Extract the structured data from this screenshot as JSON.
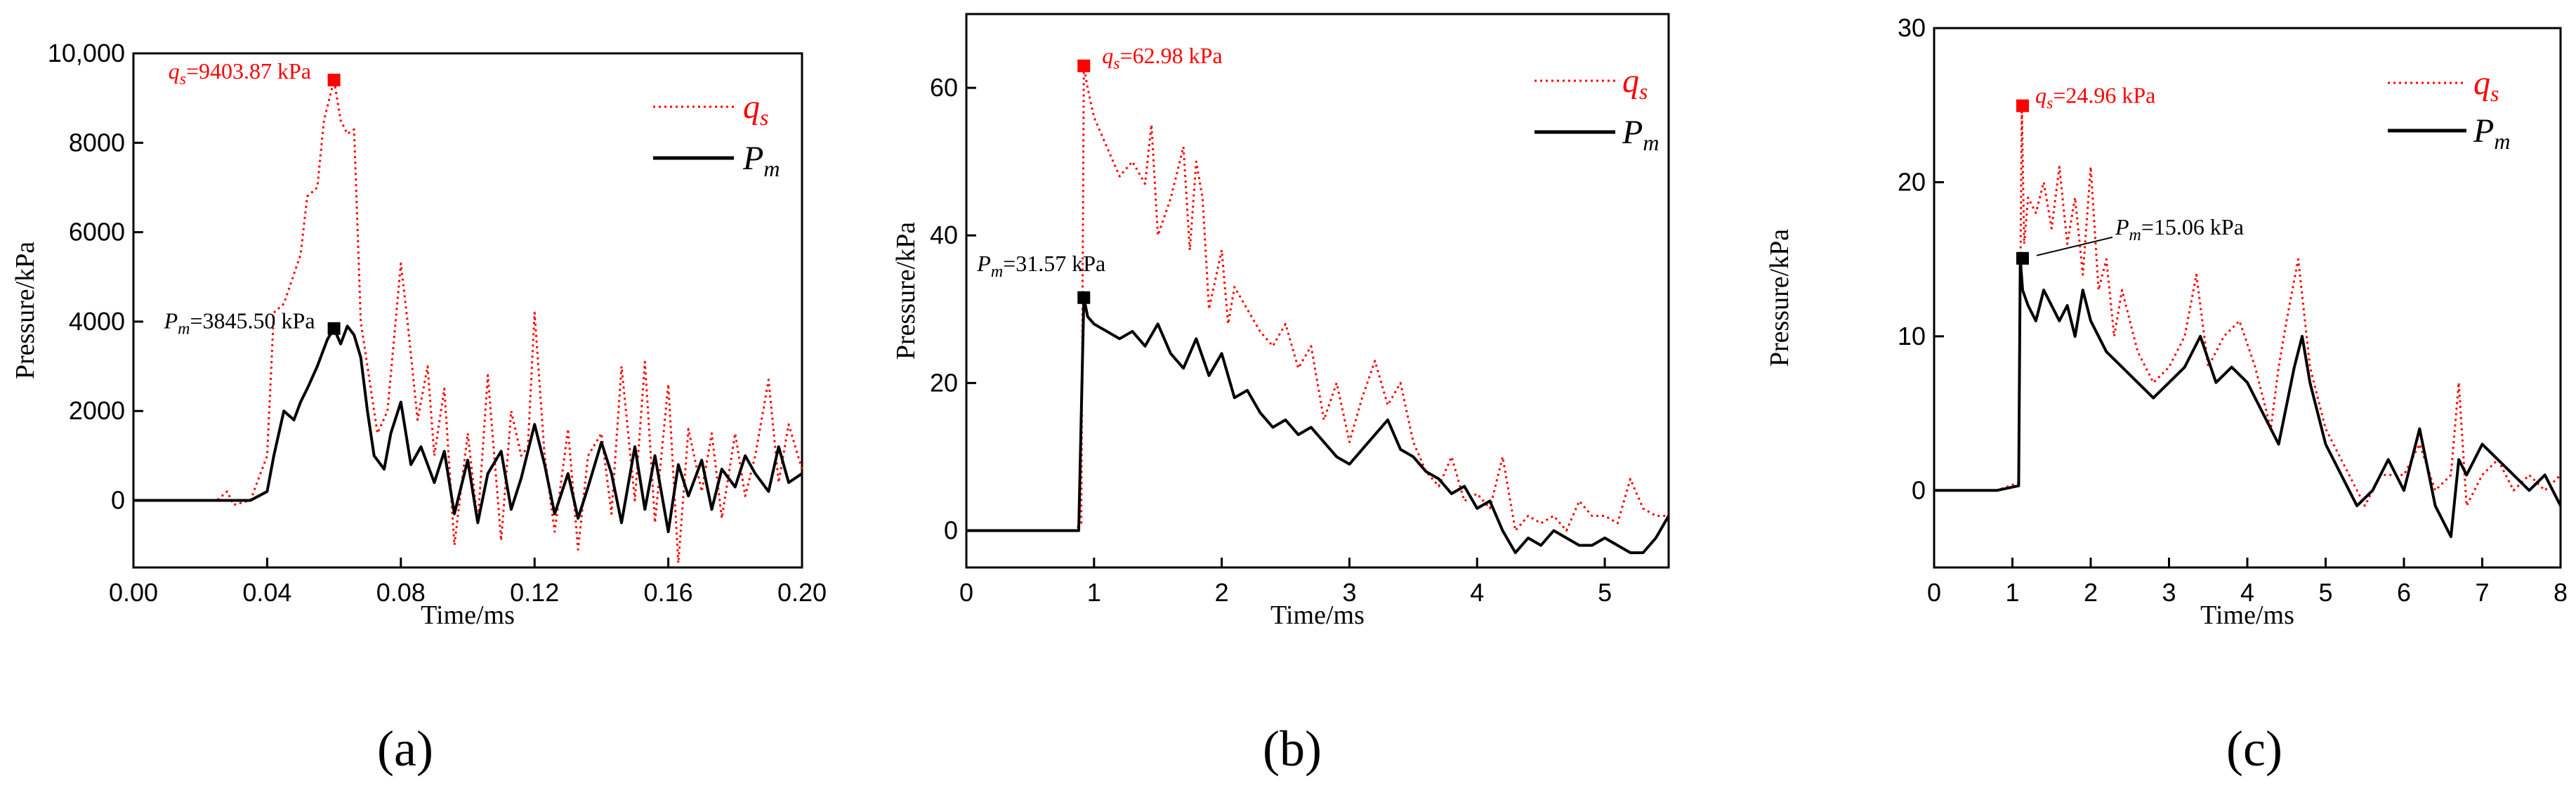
{
  "chart_data": [
    {
      "type": "line",
      "panel_label": "(a)",
      "xlabel": "Time/ms",
      "ylabel": "Pressure/kPa",
      "xlim": [
        0,
        0.2
      ],
      "ylim": [
        -1500,
        10000
      ],
      "xticks": [
        0,
        0.04,
        0.08,
        0.12,
        0.16,
        0.2
      ],
      "xtick_labels": [
        "0.00",
        "0.04",
        "0.08",
        "0.12",
        "0.16",
        "0.20"
      ],
      "yticks": [
        0,
        2000,
        4000,
        6000,
        8000,
        10000
      ],
      "ytick_labels": [
        "0",
        "2000",
        "4000",
        "6000",
        "8000",
        "10,000"
      ],
      "legend_position": "top-right",
      "series": [
        {
          "name": "q_s",
          "legend_main": "q",
          "legend_sub": "s",
          "color": "#ff0000",
          "style": "dotted",
          "x": [
            0,
            0.025,
            0.028,
            0.03,
            0.035,
            0.04,
            0.042,
            0.045,
            0.05,
            0.052,
            0.055,
            0.057,
            0.06,
            0.062,
            0.064,
            0.066,
            0.068,
            0.07,
            0.073,
            0.076,
            0.08,
            0.082,
            0.085,
            0.088,
            0.09,
            0.093,
            0.096,
            0.1,
            0.103,
            0.106,
            0.11,
            0.113,
            0.116,
            0.118,
            0.12,
            0.123,
            0.126,
            0.13,
            0.133,
            0.136,
            0.14,
            0.143,
            0.146,
            0.15,
            0.153,
            0.156,
            0.16,
            0.163,
            0.166,
            0.17,
            0.173,
            0.176,
            0.18,
            0.183,
            0.186,
            0.19,
            0.193,
            0.196,
            0.2
          ],
          "y": [
            0,
            0,
            200,
            -100,
            0,
            1000,
            4200,
            4400,
            5500,
            6800,
            7000,
            8500,
            9403.87,
            8500,
            8200,
            8300,
            4000,
            3000,
            1500,
            2000,
            5300,
            4000,
            1800,
            3000,
            1000,
            2500,
            -1000,
            1500,
            -500,
            2800,
            -900,
            2000,
            1000,
            1200,
            4200,
            1000,
            -700,
            1600,
            -1100,
            1000,
            1500,
            -300,
            3000,
            0,
            3100,
            -500,
            2600,
            -1400,
            1600,
            200,
            1500,
            -400,
            1500,
            100,
            1000,
            2700,
            400,
            1700,
            700
          ]
        },
        {
          "name": "P_m",
          "legend_main": "P",
          "legend_sub": "m",
          "color": "#000000",
          "style": "solid",
          "x": [
            0,
            0.035,
            0.04,
            0.042,
            0.045,
            0.048,
            0.05,
            0.052,
            0.055,
            0.058,
            0.06,
            0.062,
            0.064,
            0.066,
            0.068,
            0.07,
            0.072,
            0.075,
            0.077,
            0.08,
            0.083,
            0.086,
            0.09,
            0.093,
            0.096,
            0.1,
            0.103,
            0.106,
            0.11,
            0.113,
            0.116,
            0.12,
            0.123,
            0.126,
            0.13,
            0.133,
            0.136,
            0.14,
            0.143,
            0.146,
            0.15,
            0.153,
            0.156,
            0.16,
            0.163,
            0.166,
            0.17,
            0.173,
            0.176,
            0.18,
            0.183,
            0.186,
            0.19,
            0.193,
            0.196,
            0.2
          ],
          "y": [
            0,
            0,
            200,
            1000,
            2000,
            1800,
            2200,
            2500,
            3000,
            3600,
            3845.5,
            3500,
            3900,
            3700,
            3200,
            2000,
            1000,
            700,
            1500,
            2200,
            800,
            1200,
            400,
            1100,
            -300,
            900,
            -500,
            600,
            1100,
            -200,
            500,
            1700,
            800,
            -300,
            600,
            -400,
            300,
            1300,
            600,
            -500,
            1200,
            -200,
            1000,
            -700,
            800,
            100,
            900,
            -200,
            700,
            300,
            1000,
            600,
            200,
            1200,
            400,
            600
          ]
        }
      ],
      "annotations": [
        {
          "series": "q_s",
          "x": 0.06,
          "y": 9403.87,
          "main": "q",
          "sub": "s",
          "value_text": "=9403.87 kPa"
        },
        {
          "series": "P_m",
          "x": 0.06,
          "y": 3845.5,
          "main": "P",
          "sub": "m",
          "value_text": "=3845.50 kPa"
        }
      ]
    },
    {
      "type": "line",
      "panel_label": "(b)",
      "xlabel": "Time/ms",
      "ylabel": "Pressure/kPa",
      "xlim": [
        0,
        5.5
      ],
      "ylim": [
        -5,
        70
      ],
      "xticks": [
        0,
        1,
        2,
        3,
        4,
        5
      ],
      "xtick_labels": [
        "0",
        "1",
        "2",
        "3",
        "4",
        "5"
      ],
      "yticks": [
        0,
        20,
        40,
        60
      ],
      "ytick_labels": [
        "0",
        "20",
        "40",
        "60"
      ],
      "legend_position": "top-right",
      "series": [
        {
          "name": "q_s",
          "legend_main": "q",
          "legend_sub": "s",
          "color": "#ff0000",
          "style": "dotted",
          "x": [
            0,
            0.5,
            0.85,
            0.9,
            0.92,
            0.95,
            1.0,
            1.1,
            1.2,
            1.3,
            1.4,
            1.45,
            1.5,
            1.6,
            1.7,
            1.75,
            1.8,
            1.85,
            1.9,
            2.0,
            2.05,
            2.1,
            2.2,
            2.3,
            2.4,
            2.5,
            2.6,
            2.7,
            2.8,
            2.9,
            3.0,
            3.1,
            3.2,
            3.3,
            3.4,
            3.5,
            3.6,
            3.7,
            3.8,
            3.9,
            4.0,
            4.1,
            4.2,
            4.3,
            4.4,
            4.5,
            4.6,
            4.7,
            4.8,
            4.9,
            5.0,
            5.1,
            5.2,
            5.3,
            5.4,
            5.5
          ],
          "y": [
            0,
            0,
            0,
            1,
            62.98,
            60,
            56,
            52,
            48,
            50,
            47,
            55,
            40,
            45,
            52,
            38,
            50,
            45,
            30,
            38,
            28,
            33,
            30,
            27,
            25,
            28,
            22,
            25,
            15,
            20,
            12,
            18,
            23,
            17,
            20,
            12,
            8,
            6,
            10,
            4,
            5,
            3,
            10,
            0,
            2,
            1,
            2,
            0,
            4,
            2,
            2,
            1,
            7,
            3,
            2,
            2
          ]
        },
        {
          "name": "P_m",
          "legend_main": "P",
          "legend_sub": "m",
          "color": "#000000",
          "style": "solid",
          "x": [
            0,
            0.5,
            0.88,
            0.92,
            0.95,
            1.0,
            1.1,
            1.2,
            1.3,
            1.4,
            1.5,
            1.6,
            1.7,
            1.8,
            1.9,
            2.0,
            2.1,
            2.2,
            2.3,
            2.4,
            2.5,
            2.6,
            2.7,
            2.8,
            2.9,
            3.0,
            3.1,
            3.2,
            3.3,
            3.4,
            3.5,
            3.6,
            3.7,
            3.8,
            3.9,
            4.0,
            4.1,
            4.2,
            4.3,
            4.4,
            4.5,
            4.6,
            4.7,
            4.8,
            4.9,
            5.0,
            5.1,
            5.2,
            5.3,
            5.4,
            5.5
          ],
          "y": [
            0,
            0,
            0,
            31.57,
            29,
            28,
            27,
            26,
            27,
            25,
            28,
            24,
            22,
            26,
            21,
            24,
            18,
            19,
            16,
            14,
            15,
            13,
            14,
            12,
            10,
            9,
            11,
            13,
            15,
            11,
            10,
            8,
            7,
            5,
            6,
            3,
            4,
            0,
            -3,
            -1,
            -2,
            0,
            -1,
            -2,
            -2,
            -1,
            -2,
            -3,
            -3,
            -1,
            2
          ]
        }
      ],
      "annotations": [
        {
          "series": "q_s",
          "x": 0.92,
          "y": 62.98,
          "main": "q",
          "sub": "s",
          "value_text": "=62.98 kPa"
        },
        {
          "series": "P_m",
          "x": 0.92,
          "y": 31.57,
          "main": "P",
          "sub": "m",
          "value_text": "=31.57 kPa"
        }
      ]
    },
    {
      "type": "line",
      "panel_label": "(c)",
      "xlabel": "Time/ms",
      "ylabel": "Pressure/kPa",
      "xlim": [
        0,
        8
      ],
      "ylim": [
        -5,
        30
      ],
      "xticks": [
        0,
        1,
        2,
        3,
        4,
        5,
        6,
        7,
        8
      ],
      "xtick_labels": [
        "0",
        "1",
        "2",
        "3",
        "4",
        "5",
        "6",
        "7",
        "8"
      ],
      "yticks": [
        0,
        10,
        20,
        30
      ],
      "ytick_labels": [
        "0",
        "10",
        "20",
        "30"
      ],
      "legend_position": "top-right",
      "series": [
        {
          "name": "q_s",
          "legend_main": "q",
          "legend_sub": "s",
          "color": "#ff0000",
          "style": "dotted",
          "x": [
            0,
            0.8,
            1.08,
            1.12,
            1.15,
            1.2,
            1.3,
            1.4,
            1.5,
            1.6,
            1.7,
            1.8,
            1.9,
            2.0,
            2.1,
            2.2,
            2.3,
            2.4,
            2.6,
            2.8,
            3.0,
            3.2,
            3.35,
            3.5,
            3.7,
            3.9,
            4.1,
            4.3,
            4.4,
            4.5,
            4.65,
            4.8,
            5.0,
            5.2,
            5.5,
            5.7,
            6.0,
            6.2,
            6.4,
            6.6,
            6.7,
            6.8,
            7.0,
            7.2,
            7.4,
            7.6,
            7.8,
            8.0
          ],
          "y": [
            0,
            0,
            0.5,
            24.96,
            16,
            19,
            18,
            20,
            17,
            21,
            16,
            19,
            14,
            21,
            13,
            15,
            10,
            13,
            9,
            7,
            8,
            10,
            14,
            8,
            10,
            11,
            8,
            4,
            8,
            11,
            15,
            8,
            4,
            2,
            -1,
            1,
            1,
            3,
            0,
            1,
            7,
            -1,
            1,
            2,
            0,
            1,
            0,
            1
          ]
        },
        {
          "name": "P_m",
          "legend_main": "P",
          "legend_sub": "m",
          "color": "#000000",
          "style": "solid",
          "x": [
            0,
            0.8,
            1.08,
            1.1,
            1.13,
            1.2,
            1.3,
            1.4,
            1.5,
            1.6,
            1.7,
            1.8,
            1.9,
            2.0,
            2.2,
            2.4,
            2.6,
            2.8,
            3.0,
            3.2,
            3.4,
            3.6,
            3.8,
            4.0,
            4.2,
            4.4,
            4.6,
            4.7,
            4.8,
            5.0,
            5.2,
            5.4,
            5.6,
            5.8,
            6.0,
            6.2,
            6.4,
            6.6,
            6.7,
            6.8,
            7.0,
            7.2,
            7.4,
            7.6,
            7.8,
            8.0
          ],
          "y": [
            0,
            0,
            0.3,
            15.06,
            13,
            12,
            11,
            13,
            12,
            11,
            12,
            10,
            13,
            11,
            9,
            8,
            7,
            6,
            7,
            8,
            10,
            7,
            8,
            7,
            5,
            3,
            8,
            10,
            7,
            3,
            1,
            -1,
            0,
            2,
            0,
            4,
            -1,
            -3,
            2,
            1,
            3,
            2,
            1,
            0,
            1,
            -1
          ]
        }
      ],
      "annotations": [
        {
          "series": "q_s",
          "x": 1.13,
          "y": 24.96,
          "main": "q",
          "sub": "s",
          "value_text": "=24.96 kPa"
        },
        {
          "series": "P_m",
          "x": 1.13,
          "y": 15.06,
          "main": "P",
          "sub": "m",
          "value_text": "=15.06 kPa"
        }
      ]
    }
  ]
}
